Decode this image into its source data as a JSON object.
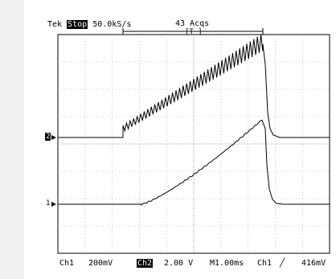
{
  "header": {
    "brand": "Tek",
    "run_state": "Stop",
    "sample_rate": "50.0kS/s",
    "acquisitions": "43 Acqs",
    "trigger_marker": "[T ]"
  },
  "channel_markers": {
    "ch2": "2",
    "ch1": "1"
  },
  "footer": {
    "ch1_label": "Ch1",
    "ch1_scale": "200mV",
    "ch2_label": "Ch2",
    "ch2_scale": "2.00 V",
    "timebase": "M1.00ms",
    "trigger_source": "Ch1",
    "trigger_slope_icon": "rising-edge-icon",
    "trigger_level": "416mV"
  },
  "colors": {
    "trace": "#000000",
    "grid": "#9a9a9a",
    "frame": "#000000"
  }
}
